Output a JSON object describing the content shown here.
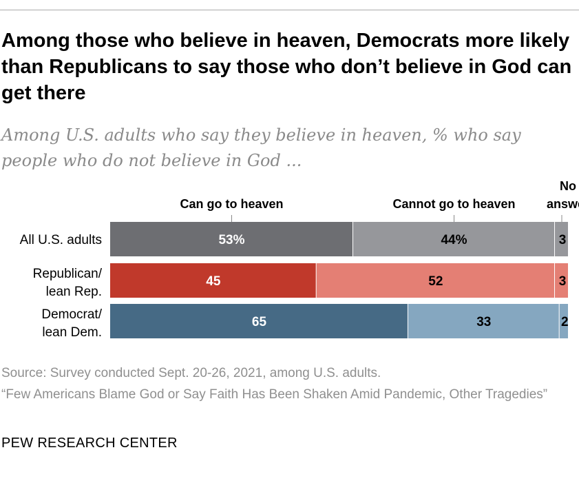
{
  "title": "Among those who believe in heaven, Democrats more likely than Republicans to say those who don’t believe in God can get there",
  "subtitle": "Among U.S. adults who say they believe in heaven, % who say people who do not believe in God ...",
  "chart_data": {
    "type": "bar",
    "orientation": "horizontal-stacked",
    "categories": [
      "All U.S. adults",
      "Republican/\nlean Rep.",
      "Democrat/\nlean Dem."
    ],
    "series": [
      {
        "name": "Can go to heaven",
        "values": [
          53,
          45,
          65
        ],
        "labels": [
          "53%",
          "45",
          "65"
        ]
      },
      {
        "name": "Cannot go to heaven",
        "values": [
          44,
          52,
          33
        ],
        "labels": [
          "44%",
          "52",
          "33"
        ]
      },
      {
        "name": "No answer",
        "values": [
          3,
          3,
          2
        ],
        "labels": [
          "3",
          "3",
          "2"
        ]
      }
    ],
    "colors": [
      [
        "#6d6e72",
        "#96979b",
        "#96979b"
      ],
      [
        "#c0392b",
        "#e47f74",
        "#e47f74"
      ],
      [
        "#466a85",
        "#85a7c0",
        "#85a7c0"
      ]
    ],
    "label_colors": [
      [
        "#fff",
        "#000",
        "#000"
      ],
      [
        "#fff",
        "#000",
        "#000"
      ],
      [
        "#fff",
        "#000",
        "#000"
      ]
    ],
    "xlim": [
      0,
      100
    ],
    "legend": "top"
  },
  "footer": {
    "source": "Source: Survey conducted Sept. 20-26, 2021, among U.S. adults.",
    "report": "“Few Americans Blame God or Say Faith Has Been Shaken Amid Pandemic, Other Tragedies”",
    "brand": "PEW RESEARCH CENTER"
  }
}
